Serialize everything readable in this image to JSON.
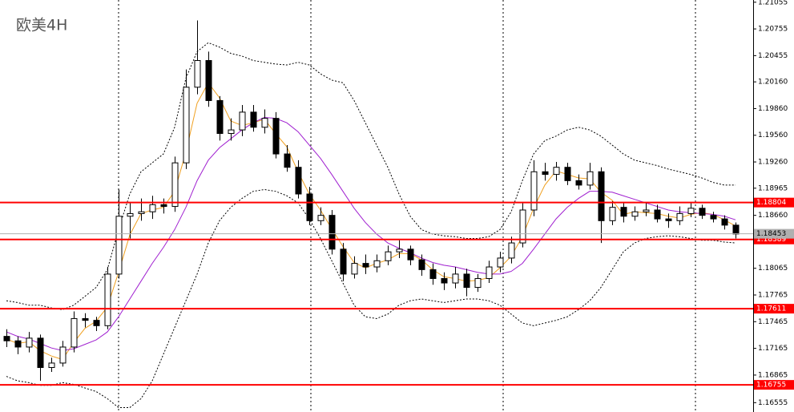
{
  "chart_data": {
    "type": "candlestick",
    "title": "欧美4H",
    "ylim": [
      1.1645,
      1.2108
    ],
    "yticks": [
      1.21055,
      1.20755,
      1.20455,
      {
        "value": 1.2016,
        "label": "1.20160"
      },
      {
        "value": 1.1986,
        "label": "1.19860"
      },
      {
        "value": 1.1956,
        "label": "1.19560"
      },
      {
        "value": 1.1926,
        "label": "1.19260"
      },
      1.18965,
      {
        "value": 1.1866,
        "label": "1.18660"
      },
      1.18065,
      1.17765,
      1.17465,
      1.17165,
      1.16865,
      1.16555
    ],
    "up_color": "#ffffff",
    "down_color": "#000000",
    "open": [
      1.173,
      1.1725,
      1.1718,
      1.1728,
      1.1695,
      1.17,
      1.1718,
      1.175,
      1.1748,
      1.1742,
      1.18,
      1.1865,
      1.1868,
      1.187,
      1.1878,
      1.1876,
      1.1925,
      1.201,
      1.204,
      1.1995,
      1.1958,
      1.1962,
      1.1982,
      1.1965,
      1.1975,
      1.1935,
      1.192,
      1.189,
      1.186,
      1.1866,
      1.1828,
      1.18,
      1.1812,
      1.1808,
      1.1815,
      1.1825,
      1.1828,
      1.1816,
      1.1805,
      1.1795,
      1.179,
      1.18,
      1.1785,
      1.1795,
      1.1808,
      1.1818,
      1.1835,
      1.1872,
      1.1915,
      1.1912,
      1.192,
      1.1905,
      1.19,
      1.1915,
      1.186,
      1.1875,
      1.1865,
      1.187,
      1.1872,
      1.1862,
      1.186,
      1.1868,
      1.1874,
      1.1866,
      1.1862,
      1.1855
    ],
    "high": [
      1.1738,
      1.173,
      1.1735,
      1.1732,
      1.1706,
      1.1725,
      1.1758,
      1.1756,
      1.1752,
      1.1808,
      1.1895,
      1.188,
      1.1885,
      1.1888,
      1.1885,
      1.1932,
      1.203,
      1.2085,
      1.205,
      1.2,
      1.1975,
      1.199,
      1.199,
      1.1985,
      1.1982,
      1.1945,
      1.1928,
      1.1898,
      1.1875,
      1.1872,
      1.1835,
      1.182,
      1.1822,
      1.1822,
      1.1832,
      1.1838,
      1.1832,
      1.1822,
      1.1812,
      1.1802,
      1.1808,
      1.1806,
      1.18,
      1.1815,
      1.1825,
      1.1842,
      1.188,
      1.1928,
      1.1925,
      1.1926,
      1.1925,
      1.1912,
      1.1925,
      1.192,
      1.1882,
      1.188,
      1.1876,
      1.188,
      1.1878,
      1.1868,
      1.1876,
      1.188,
      1.1878,
      1.187,
      1.1866,
      1.1858
    ],
    "low": [
      1.1718,
      1.171,
      1.1712,
      1.168,
      1.169,
      1.1696,
      1.1712,
      1.174,
      1.1736,
      1.1738,
      1.1795,
      1.184,
      1.186,
      1.1862,
      1.1868,
      1.187,
      1.1918,
      1.2002,
      1.1988,
      1.195,
      1.195,
      1.1955,
      1.196,
      1.1958,
      1.193,
      1.1915,
      1.1885,
      1.1855,
      1.1855,
      1.1822,
      1.1792,
      1.1795,
      1.18,
      1.1802,
      1.181,
      1.1818,
      1.181,
      1.1798,
      1.1788,
      1.1782,
      1.1784,
      1.1775,
      1.178,
      1.179,
      1.1802,
      1.1812,
      1.183,
      1.1865,
      1.1905,
      1.1905,
      1.19,
      1.1895,
      1.1895,
      1.1835,
      1.1855,
      1.1858,
      1.186,
      1.1865,
      1.1858,
      1.1852,
      1.1855,
      1.1864,
      1.1862,
      1.1858,
      1.185,
      1.184
    ],
    "close": [
      1.1725,
      1.1718,
      1.1728,
      1.1695,
      1.17,
      1.1718,
      1.175,
      1.1748,
      1.1742,
      1.18,
      1.1865,
      1.1868,
      1.187,
      1.1878,
      1.1876,
      1.1925,
      1.201,
      1.204,
      1.1995,
      1.1958,
      1.1962,
      1.1982,
      1.1965,
      1.1975,
      1.1935,
      1.192,
      1.189,
      1.186,
      1.1866,
      1.1828,
      1.18,
      1.1812,
      1.1808,
      1.1815,
      1.1825,
      1.1828,
      1.1816,
      1.1805,
      1.1795,
      1.179,
      1.18,
      1.1785,
      1.1795,
      1.1808,
      1.1818,
      1.1835,
      1.1872,
      1.1915,
      1.1912,
      1.192,
      1.1905,
      1.19,
      1.1915,
      1.186,
      1.1875,
      1.1865,
      1.187,
      1.1872,
      1.1862,
      1.186,
      1.1868,
      1.1874,
      1.1866,
      1.1862,
      1.1855,
      1.1845
    ],
    "overlays": [
      {
        "color": "#f0a020",
        "style": "solid",
        "values": [
          1.1727,
          1.1722,
          1.1724,
          1.1714,
          1.1708,
          1.1704,
          1.1723,
          1.1739,
          1.1747,
          1.1763,
          1.1802,
          1.1844,
          1.1868,
          1.1872,
          1.1875,
          1.1893,
          1.1937,
          1.1992,
          1.2015,
          1.1998,
          1.1972,
          1.1967,
          1.197,
          1.1974,
          1.1958,
          1.1943,
          1.1915,
          1.189,
          1.1872,
          1.1851,
          1.1831,
          1.1813,
          1.1807,
          1.1812,
          1.1816,
          1.1823,
          1.1823,
          1.1816,
          1.1805,
          1.1797,
          1.1795,
          1.1792,
          1.1793,
          1.1796,
          1.1807,
          1.182,
          1.1842,
          1.1874,
          1.19,
          1.1916,
          1.1912,
          1.1908,
          1.1907,
          1.1892,
          1.1883,
          1.1867,
          1.187,
          1.1869,
          1.1868,
          1.1865,
          1.1863,
          1.1867,
          1.1869,
          1.1867,
          1.1861,
          1.1854
        ]
      },
      {
        "color": "#a020d0",
        "style": "solid",
        "values": [
          1.1735,
          1.173,
          1.1727,
          1.1722,
          1.1717,
          1.1714,
          1.1716,
          1.1721,
          1.1726,
          1.1735,
          1.1752,
          1.1772,
          1.1792,
          1.1812,
          1.183,
          1.185,
          1.1875,
          1.1905,
          1.1928,
          1.1942,
          1.1952,
          1.1962,
          1.197,
          1.1976,
          1.1975,
          1.197,
          1.196,
          1.1945,
          1.193,
          1.1912,
          1.1893,
          1.1874,
          1.1858,
          1.1845,
          1.1835,
          1.1829,
          1.1824,
          1.1818,
          1.1813,
          1.181,
          1.1808,
          1.1805,
          1.1802,
          1.18,
          1.18,
          1.1803,
          1.1812,
          1.1828,
          1.1845,
          1.1862,
          1.1875,
          1.1885,
          1.1893,
          1.1893,
          1.1892,
          1.1888,
          1.1884,
          1.188,
          1.1876,
          1.1872,
          1.187,
          1.1869,
          1.1868,
          1.1867,
          1.1865,
          1.1861
        ]
      },
      {
        "color": "#000000",
        "style": "dotted",
        "values": [
          1.177,
          1.1768,
          1.1765,
          1.1765,
          1.1762,
          1.176,
          1.1765,
          1.1775,
          1.1785,
          1.1805,
          1.185,
          1.189,
          1.1915,
          1.1925,
          1.1935,
          1.1965,
          1.202,
          1.205,
          1.206,
          1.2055,
          1.2048,
          1.2045,
          1.204,
          1.2038,
          1.2036,
          1.2035,
          1.2038,
          1.2035,
          1.2025,
          1.2018,
          1.2015,
          1.1995,
          1.197,
          1.1945,
          1.192,
          1.189,
          1.1865,
          1.185,
          1.1845,
          1.1843,
          1.1842,
          1.184,
          1.184,
          1.1842,
          1.185,
          1.187,
          1.1905,
          1.1935,
          1.195,
          1.1955,
          1.1962,
          1.1965,
          1.1962,
          1.1955,
          1.1945,
          1.1935,
          1.1928,
          1.1925,
          1.1922,
          1.1918,
          1.1915,
          1.1912,
          1.1908,
          1.1903,
          1.19,
          1.19
        ]
      },
      {
        "color": "#000000",
        "style": "dotted",
        "values": [
          1.1685,
          1.168,
          1.1678,
          1.1675,
          1.1675,
          1.1678,
          1.1676,
          1.1672,
          1.1668,
          1.166,
          1.165,
          1.165,
          1.166,
          1.168,
          1.171,
          1.174,
          1.177,
          1.18,
          1.1835,
          1.186,
          1.1875,
          1.1885,
          1.1893,
          1.1895,
          1.1893,
          1.1888,
          1.188,
          1.1862,
          1.184,
          1.1815,
          1.179,
          1.1765,
          1.1752,
          1.175,
          1.1755,
          1.1765,
          1.177,
          1.1772,
          1.177,
          1.1768,
          1.177,
          1.1772,
          1.1772,
          1.177,
          1.1765,
          1.1755,
          1.1745,
          1.1742,
          1.1745,
          1.1748,
          1.1752,
          1.176,
          1.177,
          1.1785,
          1.1805,
          1.1825,
          1.1835,
          1.184,
          1.1842,
          1.1843,
          1.1842,
          1.184,
          1.1838,
          1.1838,
          1.1836,
          1.1835
        ]
      }
    ],
    "levels": [
      {
        "value": 1.18804,
        "color": "#ff0000"
      },
      {
        "value": 1.18389,
        "color": "#ff0000"
      },
      {
        "value": 1.17611,
        "color": "#ff0000"
      },
      {
        "value": 1.16755,
        "color": "#ff0000"
      }
    ],
    "current_price": {
      "value": 1.18453,
      "color": "#b0b0b0"
    }
  }
}
